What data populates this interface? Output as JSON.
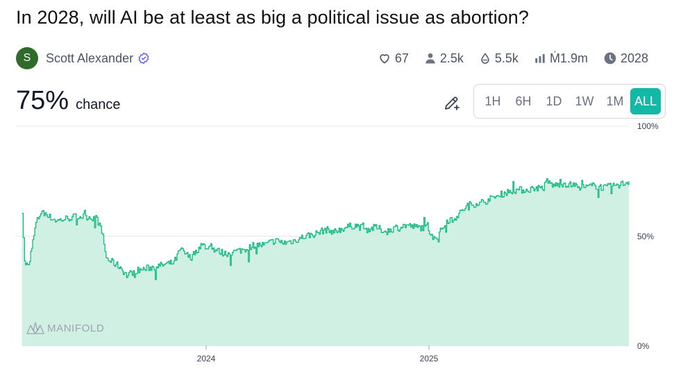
{
  "question": {
    "title": "In 2028, will AI be at least as big a political issue as abortion?"
  },
  "author": {
    "initial": "S",
    "name": "Scott Alexander",
    "avatar_color": "#2f6b2b"
  },
  "stats": {
    "likes": "67",
    "traders": "2.5k",
    "liquidity": "5.5k",
    "volume": "Ṁ1.9m",
    "close_year": "2028"
  },
  "probability": {
    "value": "75%",
    "label": "chance"
  },
  "time_ranges": {
    "items": [
      "1H",
      "6H",
      "1D",
      "1W",
      "1M",
      "ALL"
    ],
    "selected": "ALL"
  },
  "colors": {
    "accent": "#14b8a6",
    "line": "#11b981",
    "area": "#d1f0e4",
    "grid": "#e5e7eb"
  },
  "watermark": "MANIFOLD",
  "chart_data": {
    "type": "area",
    "y_axis": {
      "ticks": [
        "0%",
        "50%",
        "100%"
      ],
      "ylim": [
        0,
        100
      ],
      "position": "right"
    },
    "x_axis": {
      "ticks": [
        "2024",
        "2025"
      ],
      "range": [
        "2023-04",
        "2025-10"
      ]
    },
    "grid": true,
    "series": [
      {
        "x": [
          "2023-04-10",
          "2023-04-14",
          "2023-04-20",
          "2023-05-01",
          "2023-05-10",
          "2023-05-20",
          "2023-06-01",
          "2023-06-15",
          "2023-07-01",
          "2023-07-15",
          "2023-08-01",
          "2023-08-10",
          "2023-08-15",
          "2023-08-25",
          "2023-09-05",
          "2023-09-15",
          "2023-09-25",
          "2023-10-10",
          "2023-10-25",
          "2023-11-10",
          "2023-11-25",
          "2023-12-05",
          "2023-12-20",
          "2024-01-05",
          "2024-01-25",
          "2024-02-10",
          "2024-02-25",
          "2024-03-10",
          "2024-03-25",
          "2024-04-10",
          "2024-04-25",
          "2024-05-10",
          "2024-05-25",
          "2024-06-10",
          "2024-06-25",
          "2024-07-10",
          "2024-07-25",
          "2024-08-10",
          "2024-08-25",
          "2024-09-10",
          "2024-09-25",
          "2024-10-10",
          "2024-10-25",
          "2024-11-10",
          "2024-11-25",
          "2024-12-10",
          "2024-12-25",
          "2025-01-10",
          "2025-01-25",
          "2025-02-10",
          "2025-02-25",
          "2025-03-10",
          "2025-03-25",
          "2025-04-10",
          "2025-04-25",
          "2025-05-10",
          "2025-05-25",
          "2025-06-05",
          "2025-06-10",
          "2025-06-20",
          "2025-07-05",
          "2025-07-20",
          "2025-08-05",
          "2025-08-20",
          "2025-09-05",
          "2025-09-20",
          "2025-10-05",
          "2025-10-12"
        ],
        "y": [
          62,
          38,
          36,
          56,
          62,
          59,
          57,
          58,
          59,
          59,
          58,
          50,
          40,
          38,
          36,
          32,
          34,
          35,
          36,
          37,
          38,
          44,
          40,
          46,
          44,
          42,
          43,
          44,
          46,
          46,
          48,
          47,
          48,
          50,
          51,
          53,
          52,
          54,
          55,
          53,
          54,
          52,
          54,
          55,
          54,
          54,
          49,
          57,
          59,
          64,
          65,
          66,
          68,
          70,
          71,
          71,
          72,
          72,
          75,
          73,
          74,
          73,
          72,
          73,
          72,
          73,
          74,
          75
        ]
      }
    ]
  }
}
